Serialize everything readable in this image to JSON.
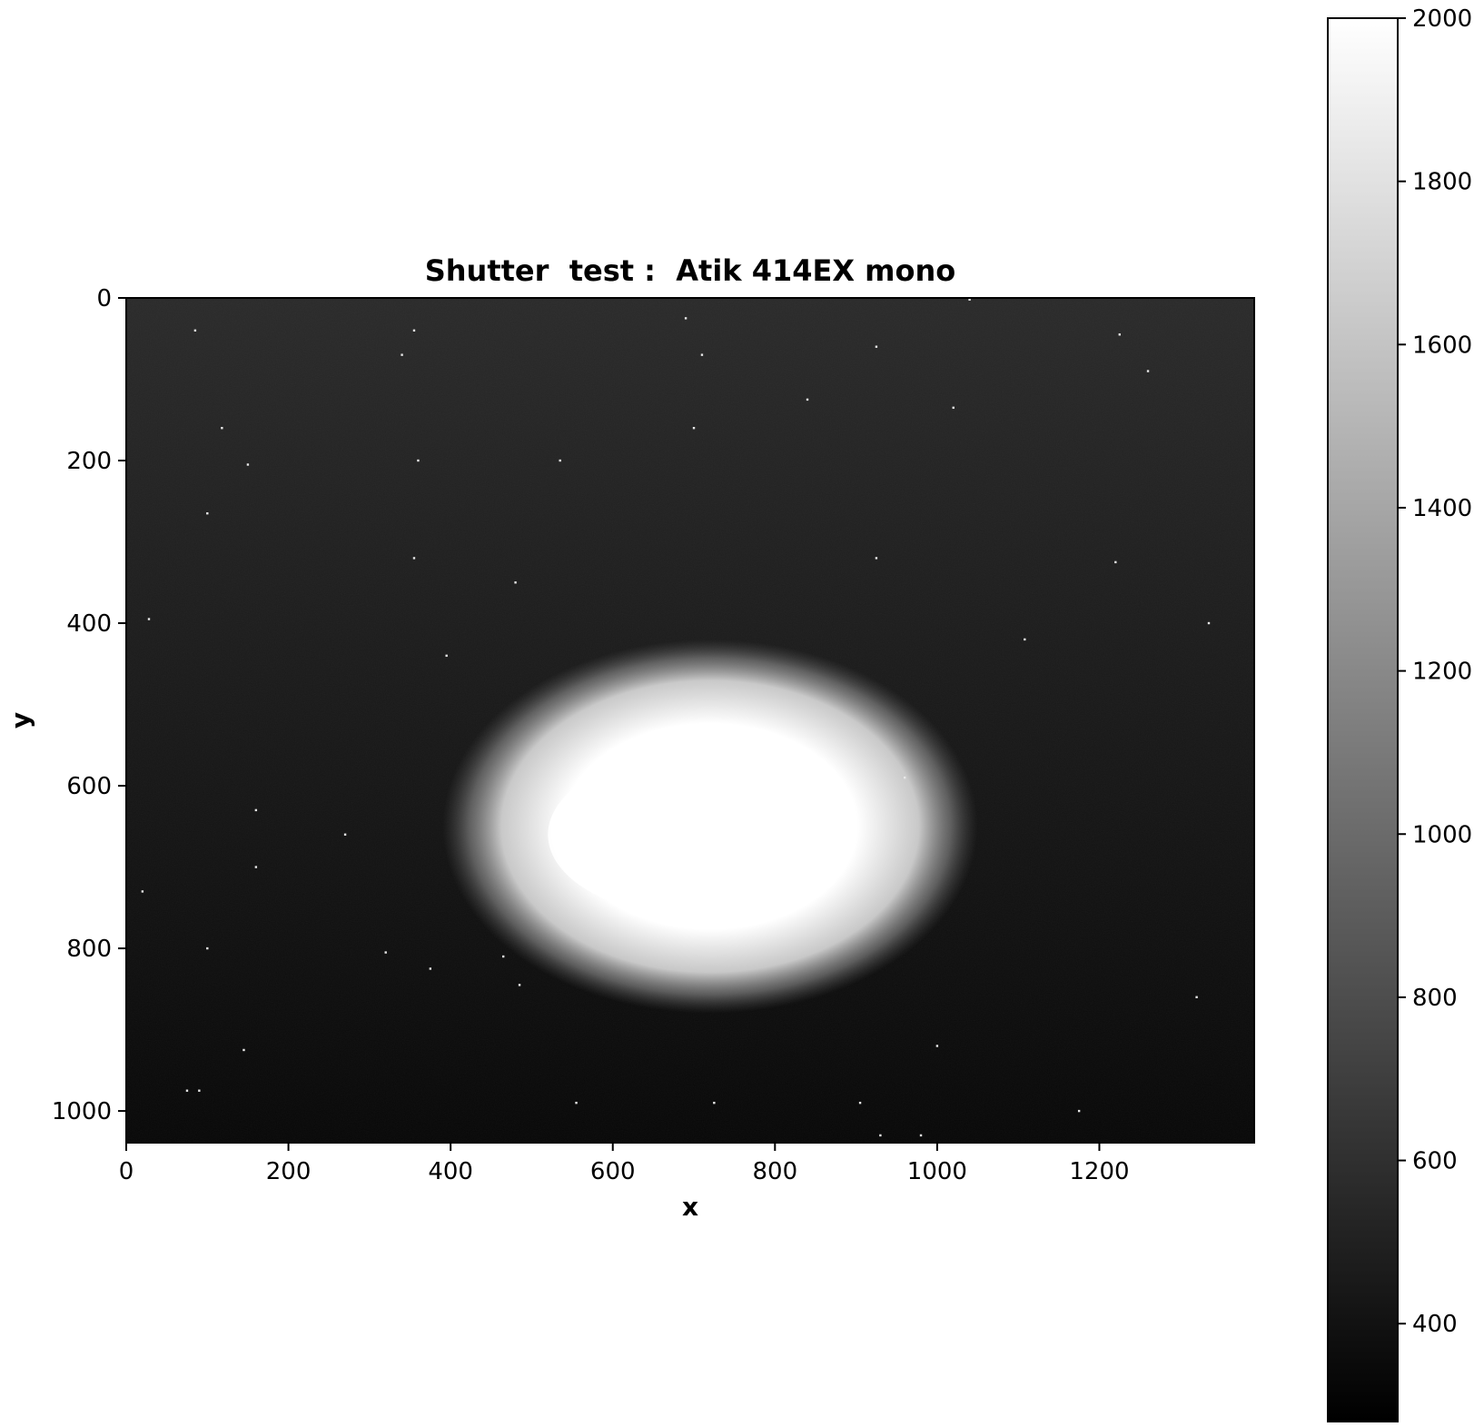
{
  "chart_data": {
    "type": "heatmap",
    "title": "Shutter  test :  Atik 414EX mono",
    "xlabel": "x",
    "ylabel": "y",
    "xlim": [
      0,
      1391
    ],
    "ylim": [
      1039,
      0
    ],
    "x_ticks": [
      0,
      200,
      400,
      600,
      800,
      1000,
      1200
    ],
    "y_ticks": [
      0,
      200,
      400,
      600,
      800,
      1000
    ],
    "colormap": "gray",
    "colorbar": {
      "vmin": 280,
      "vmax": 2000,
      "ticks": [
        400,
        600,
        800,
        1000,
        1200,
        1400,
        1600,
        1800,
        2000
      ]
    },
    "background": {
      "value_top": 560,
      "value_bottom": 330
    },
    "bright_region": {
      "center_x": 720,
      "center_y": 650,
      "semi_axis_x": 330,
      "semi_axis_y": 230,
      "peak_value": 2000,
      "saturated_core": {
        "x_range": [
          520,
          880
        ],
        "y_range": [
          560,
          760
        ]
      }
    },
    "hot_pixels": [
      [
        85,
        40
      ],
      [
        340,
        70
      ],
      [
        355,
        40
      ],
      [
        690,
        25
      ],
      [
        710,
        70
      ],
      [
        925,
        60
      ],
      [
        1040,
        2
      ],
      [
        1225,
        45
      ],
      [
        1260,
        90
      ],
      [
        118,
        160
      ],
      [
        150,
        205
      ],
      [
        360,
        200
      ],
      [
        535,
        200
      ],
      [
        700,
        160
      ],
      [
        840,
        125
      ],
      [
        1020,
        135
      ],
      [
        100,
        265
      ],
      [
        355,
        320
      ],
      [
        925,
        320
      ],
      [
        1220,
        325
      ],
      [
        480,
        350
      ],
      [
        28,
        395
      ],
      [
        1108,
        420
      ],
      [
        1335,
        400
      ],
      [
        395,
        440
      ],
      [
        960,
        590
      ],
      [
        160,
        630
      ],
      [
        160,
        700
      ],
      [
        20,
        730
      ],
      [
        100,
        800
      ],
      [
        320,
        805
      ],
      [
        375,
        825
      ],
      [
        465,
        810
      ],
      [
        485,
        845
      ],
      [
        1000,
        920
      ],
      [
        145,
        925
      ],
      [
        75,
        975
      ],
      [
        90,
        975
      ],
      [
        555,
        990
      ],
      [
        725,
        990
      ],
      [
        905,
        990
      ],
      [
        1175,
        1000
      ],
      [
        930,
        1030
      ],
      [
        980,
        1030
      ],
      [
        1320,
        860
      ],
      [
        270,
        660
      ]
    ]
  }
}
